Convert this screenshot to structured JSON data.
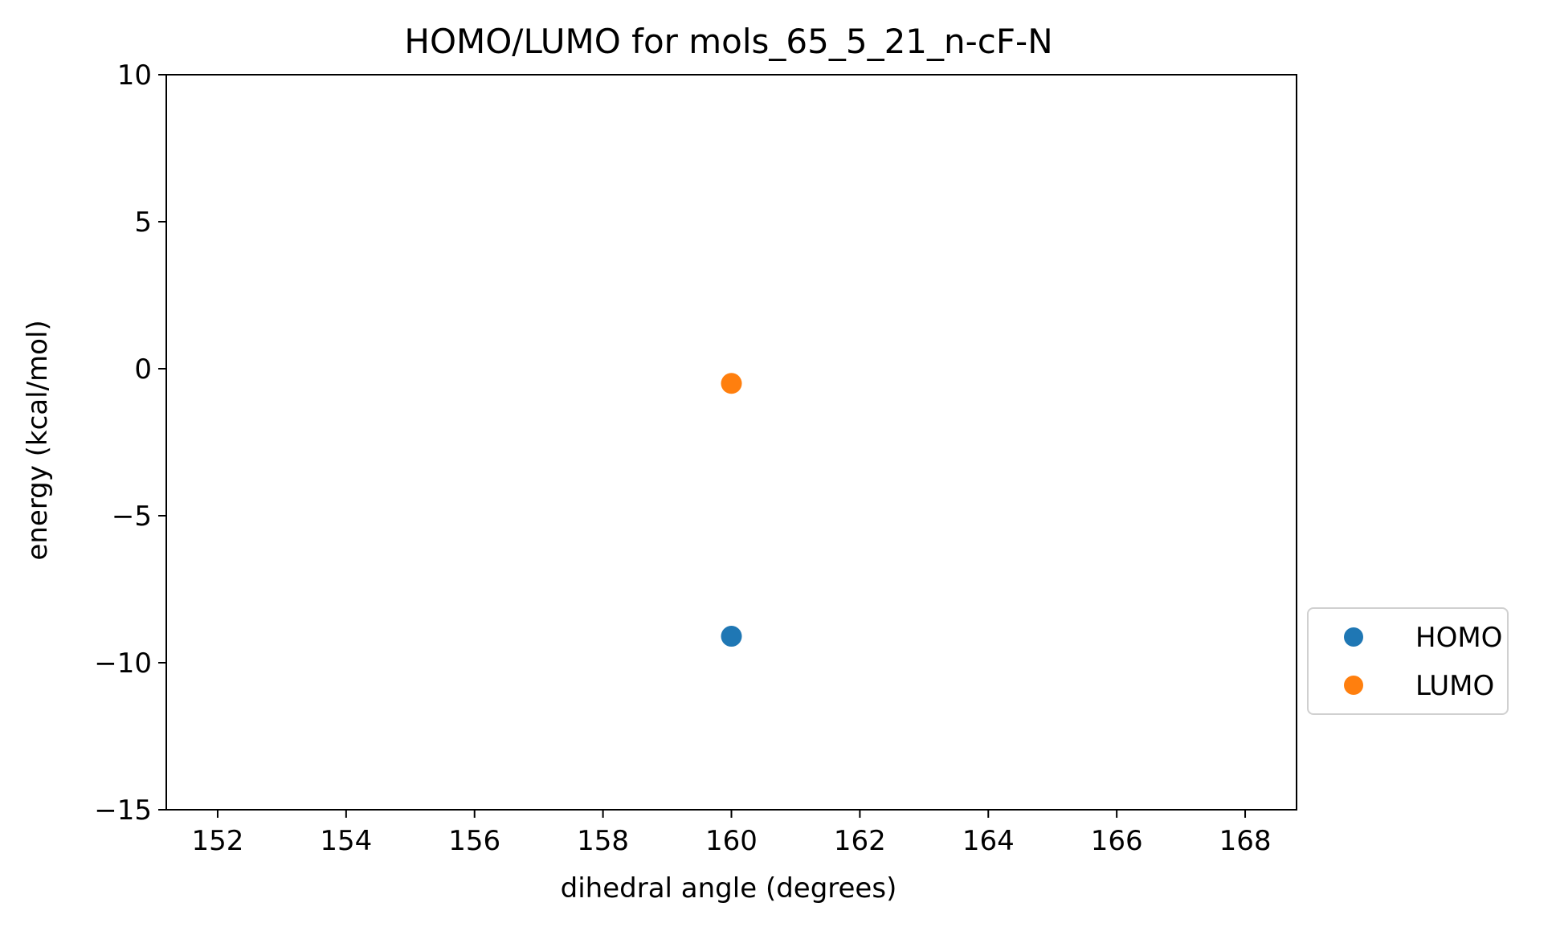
{
  "chart_data": {
    "type": "scatter",
    "title": "HOMO/LUMO for mols_65_5_21_n-cF-N",
    "xlabel": "dihedral angle (degrees)",
    "ylabel": "energy (kcal/mol)",
    "xlim": [
      151.2,
      168.8
    ],
    "ylim": [
      -15,
      10
    ],
    "xticks": [
      152,
      154,
      156,
      158,
      160,
      162,
      164,
      166,
      168
    ],
    "xtick_labels": [
      "152",
      "154",
      "156",
      "158",
      "160",
      "162",
      "164",
      "166",
      "168"
    ],
    "yticks": [
      10,
      5,
      0,
      -5,
      -10,
      -15
    ],
    "ytick_labels": [
      "10",
      "5",
      "0",
      "−5",
      "−10",
      "−15"
    ],
    "grid": false,
    "legend_position": "outside right, lower",
    "series": [
      {
        "name": "HOMO",
        "color": "#1f77b4",
        "points": [
          {
            "x": 160,
            "y": -9.1
          }
        ]
      },
      {
        "name": "LUMO",
        "color": "#ff7f0e",
        "points": [
          {
            "x": 160,
            "y": -0.5
          }
        ]
      }
    ]
  }
}
